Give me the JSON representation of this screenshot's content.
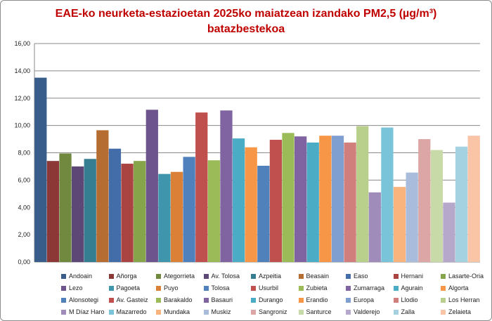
{
  "chart_data": {
    "type": "bar",
    "title_line1": "EAE-ko neurketa-estazioetan 2025ko maiatzean izandako PM2,5 (µg/m³)",
    "title_line2": "batazbestekoa",
    "xlabel": "",
    "ylabel": "",
    "ylim": [
      0,
      16
    ],
    "yticks": [
      "0,00",
      "2,00",
      "4,00",
      "6,00",
      "8,00",
      "10,00",
      "12,00",
      "14,00",
      "16,00"
    ],
    "grid": true,
    "legend_position": "bottom",
    "series": [
      {
        "name": "Andoain",
        "value": 13.5,
        "color": "#385d8a"
      },
      {
        "name": "Añorga",
        "value": 7.4,
        "color": "#8c3836"
      },
      {
        "name": "Ategorrieta",
        "value": 7.95,
        "color": "#71893f"
      },
      {
        "name": "Av. Tolosa",
        "value": 7.0,
        "color": "#5c4776"
      },
      {
        "name": "Azpeitia",
        "value": 7.55,
        "color": "#357d91"
      },
      {
        "name": "Beasain",
        "value": 9.65,
        "color": "#b66d31"
      },
      {
        "name": "Easo",
        "value": 8.3,
        "color": "#426da9"
      },
      {
        "name": "Hernani",
        "value": 7.2,
        "color": "#a94442"
      },
      {
        "name": "Lasarte-Oria",
        "value": 7.4,
        "color": "#86a44a"
      },
      {
        "name": "Lezo",
        "value": 11.15,
        "color": "#6e548d"
      },
      {
        "name": "Pagoeta",
        "value": 6.45,
        "color": "#3f95ab"
      },
      {
        "name": "Puyo",
        "value": 6.6,
        "color": "#da8137"
      },
      {
        "name": "Tolosa",
        "value": 7.7,
        "color": "#4f81bd"
      },
      {
        "name": "Usurbil",
        "value": 10.95,
        "color": "#c0504d"
      },
      {
        "name": "Zubieta",
        "value": 7.45,
        "color": "#9bbb59"
      },
      {
        "name": "Zumarraga",
        "value": 11.1,
        "color": "#8064a2"
      },
      {
        "name": "Agurain",
        "value": 9.05,
        "color": "#4bacc6"
      },
      {
        "name": "Algorta",
        "value": 8.4,
        "color": "#f79646"
      },
      {
        "name": "Alonsotegi",
        "value": 7.05,
        "color": "#5181bb"
      },
      {
        "name": "Av. Gasteiz",
        "value": 8.95,
        "color": "#c0504d"
      },
      {
        "name": "Barakaldo",
        "value": 9.45,
        "color": "#9bbb59"
      },
      {
        "name": "Basauri",
        "value": 9.2,
        "color": "#8064a2"
      },
      {
        "name": "Durango",
        "value": 8.75,
        "color": "#4bacc6"
      },
      {
        "name": "Erandio",
        "value": 9.25,
        "color": "#f79646"
      },
      {
        "name": "Europa",
        "value": 9.25,
        "color": "#7f9fd0"
      },
      {
        "name": "Llodio",
        "value": 8.75,
        "color": "#d07f7d"
      },
      {
        "name": "Los Herran",
        "value": 9.95,
        "color": "#b8d08c"
      },
      {
        "name": "M Díaz Haro",
        "value": 5.1,
        "color": "#9f8cbb"
      },
      {
        "name": "Mazarredo",
        "value": 9.85,
        "color": "#79c4d8"
      },
      {
        "name": "Mundaka",
        "value": 5.5,
        "color": "#f9b37c"
      },
      {
        "name": "Muskiz",
        "value": 6.55,
        "color": "#a9bcdc"
      },
      {
        "name": "Sangroniz",
        "value": 9.0,
        "color": "#dba6a5"
      },
      {
        "name": "Santurce",
        "value": 8.2,
        "color": "#c8daa8"
      },
      {
        "name": "Valderejo",
        "value": 4.35,
        "color": "#b5a8ca"
      },
      {
        "name": "Zalla",
        "value": 8.45,
        "color": "#a4d2e0"
      },
      {
        "name": "Zelaieta",
        "value": 9.25,
        "color": "#f9c5a6"
      }
    ]
  }
}
